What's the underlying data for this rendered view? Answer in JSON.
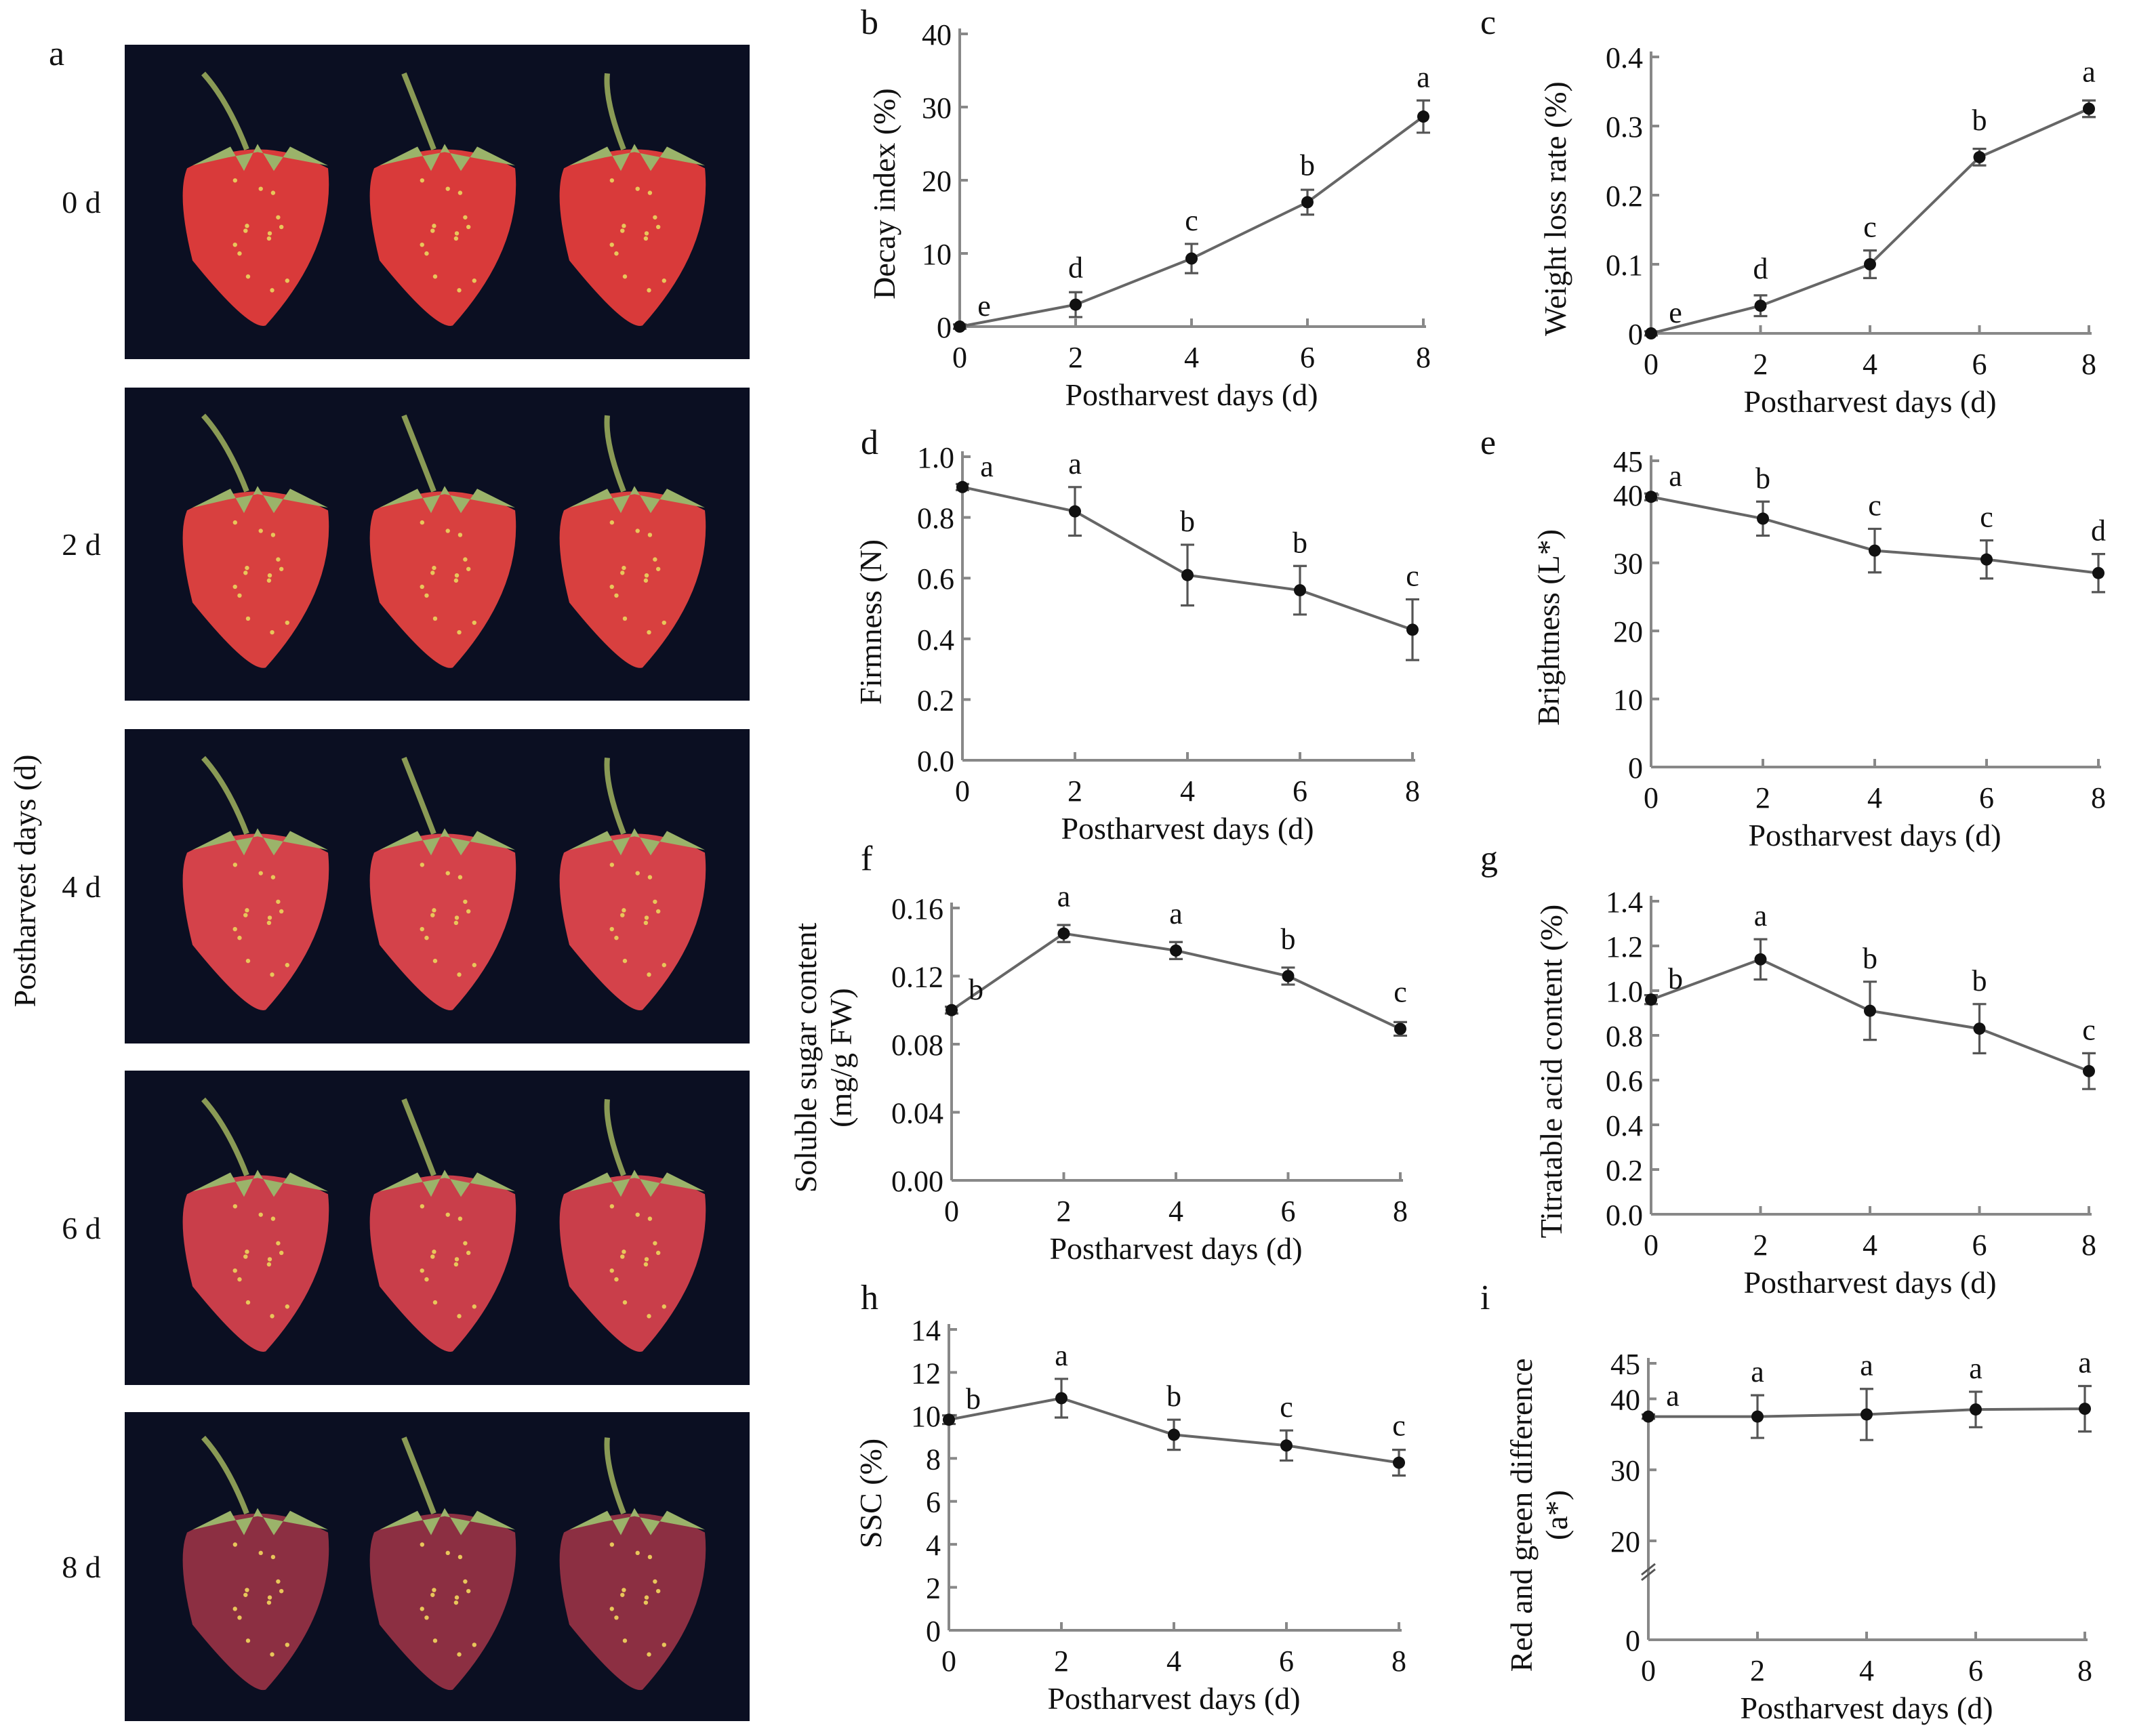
{
  "photo_panel": {
    "label": "a",
    "ylabel": "Postharvest days (d)",
    "rows": [
      {
        "day": "0 d",
        "fruit_color": "#d93a3a"
      },
      {
        "day": "2 d",
        "fruit_color": "#d8403f"
      },
      {
        "day": "4 d",
        "fruit_color": "#d4424a"
      },
      {
        "day": "6 d",
        "fruit_color": "#c93e4a"
      },
      {
        "day": "8 d",
        "fruit_color": "#8c2f42"
      }
    ],
    "background_color": "#0b0f22"
  },
  "chart_data": [
    {
      "panel": "b",
      "type": "line",
      "xlabel": "Postharvest days (d)",
      "ylabel": [
        "Decay index (%)"
      ],
      "x": [
        0,
        2,
        4,
        6,
        8
      ],
      "y": [
        0,
        3,
        9.3,
        17,
        28.7
      ],
      "error": [
        0.3,
        1.7,
        2,
        1.7,
        2.2
      ],
      "letters": [
        "e",
        "d",
        "c",
        "b",
        "a"
      ],
      "ylim": [
        0,
        40
      ],
      "yticks": [
        "0",
        "10",
        "20",
        "30",
        "40"
      ],
      "ytick_values": [
        0,
        10,
        20,
        30,
        40
      ],
      "xticks": [
        "0",
        "2",
        "4",
        "6",
        "8"
      ]
    },
    {
      "panel": "c",
      "type": "line",
      "xlabel": "Postharvest days (d)",
      "ylabel": [
        "Weight loss rate (%)"
      ],
      "x": [
        0,
        2,
        4,
        6,
        8
      ],
      "y": [
        0,
        0.04,
        0.1,
        0.255,
        0.325
      ],
      "error": [
        0.003,
        0.015,
        0.02,
        0.012,
        0.012
      ],
      "letters": [
        "e",
        "d",
        "c",
        "b",
        "a"
      ],
      "ylim": [
        0,
        0.4
      ],
      "yticks": [
        "0",
        "0.1",
        "0.2",
        "0.3",
        "0.4"
      ],
      "ytick_values": [
        0,
        0.1,
        0.2,
        0.3,
        0.4
      ],
      "xticks": [
        "0",
        "2",
        "4",
        "6",
        "8"
      ]
    },
    {
      "panel": "d",
      "type": "line",
      "xlabel": "Postharvest days (d)",
      "ylabel": [
        "Firmness (N)"
      ],
      "x": [
        0,
        2,
        4,
        6,
        8
      ],
      "y": [
        0.9,
        0.82,
        0.61,
        0.56,
        0.43
      ],
      "error": [
        0.01,
        0.08,
        0.1,
        0.08,
        0.1
      ],
      "letters": [
        "a",
        "a",
        "b",
        "b",
        "c"
      ],
      "ylim": [
        0,
        1.0
      ],
      "yticks": [
        "0.0",
        "0.2",
        "0.4",
        "0.6",
        "0.8",
        "1.0"
      ],
      "ytick_values": [
        0,
        0.2,
        0.4,
        0.6,
        0.8,
        1.0
      ],
      "xticks": [
        "0",
        "2",
        "4",
        "6",
        "8"
      ]
    },
    {
      "panel": "e",
      "type": "line",
      "xlabel": "Postharvest days (d)",
      "ylabel": [
        "Brightness (L*)"
      ],
      "x": [
        0,
        2,
        4,
        6,
        8
      ],
      "y": [
        39.7,
        36.5,
        31.8,
        30.5,
        28.5
      ],
      "error": [
        0.5,
        2.5,
        3.2,
        2.8,
        2.8
      ],
      "letters": [
        "a",
        "b",
        "c",
        "c",
        "d"
      ],
      "ylim": [
        0,
        45
      ],
      "yticks": [
        "0",
        "10",
        "20",
        "30",
        "40",
        "45"
      ],
      "ytick_values": [
        0,
        10,
        20,
        30,
        40,
        45
      ],
      "xticks": [
        "0",
        "2",
        "4",
        "6",
        "8"
      ]
    },
    {
      "panel": "f",
      "type": "line",
      "xlabel": "Postharvest days (d)",
      "ylabel": [
        "Soluble sugar content",
        "(mg/g FW)"
      ],
      "x": [
        0,
        2,
        4,
        6,
        8
      ],
      "y": [
        0.1,
        0.145,
        0.135,
        0.12,
        0.089
      ],
      "error": [
        0.002,
        0.005,
        0.005,
        0.005,
        0.004
      ],
      "letters": [
        "b",
        "a",
        "a",
        "b",
        "c"
      ],
      "ylim": [
        0,
        0.16
      ],
      "yticks": [
        "0.00",
        "0.04",
        "0.08",
        "0.12",
        "0.16"
      ],
      "ytick_values": [
        0,
        0.04,
        0.08,
        0.12,
        0.16
      ],
      "xticks": [
        "0",
        "2",
        "4",
        "6",
        "8"
      ]
    },
    {
      "panel": "g",
      "type": "line",
      "xlabel": "Postharvest days (d)",
      "ylabel": [
        "Titratable acid content (%)"
      ],
      "x": [
        0,
        2,
        4,
        6,
        8
      ],
      "y": [
        0.96,
        1.14,
        0.91,
        0.83,
        0.64
      ],
      "error": [
        0.02,
        0.09,
        0.13,
        0.11,
        0.08
      ],
      "letters": [
        "b",
        "a",
        "b",
        "b",
        "c"
      ],
      "ylim": [
        0,
        1.4
      ],
      "yticks": [
        "0.0",
        "0.2",
        "0.4",
        "0.6",
        "0.8",
        "1.0",
        "1.2",
        "1.4"
      ],
      "ytick_values": [
        0,
        0.2,
        0.4,
        0.6,
        0.8,
        1.0,
        1.2,
        1.4
      ],
      "xticks": [
        "0",
        "2",
        "4",
        "6",
        "8"
      ]
    },
    {
      "panel": "h",
      "type": "line",
      "xlabel": "Postharvest days (d)",
      "ylabel": [
        "SSC (%)"
      ],
      "x": [
        0,
        2,
        4,
        6,
        8
      ],
      "y": [
        9.8,
        10.8,
        9.1,
        8.6,
        7.8
      ],
      "error": [
        0.2,
        0.9,
        0.7,
        0.7,
        0.6
      ],
      "letters": [
        "b",
        "a",
        "b",
        "c",
        "c"
      ],
      "ylim": [
        0,
        14
      ],
      "yticks": [
        "0",
        "2",
        "4",
        "6",
        "8",
        "10",
        "12",
        "14"
      ],
      "ytick_values": [
        0,
        2,
        4,
        6,
        8,
        10,
        12,
        14
      ],
      "xticks": [
        "0",
        "2",
        "4",
        "6",
        "8"
      ]
    },
    {
      "panel": "i",
      "type": "line",
      "xlabel": "Postharvest days (d)",
      "ylabel": [
        "Red and green difference",
        "(a*)"
      ],
      "x": [
        0,
        2,
        4,
        6,
        8
      ],
      "y": [
        37.5,
        37.5,
        37.8,
        38.5,
        38.6
      ],
      "error": [
        0.3,
        3,
        3.6,
        2.5,
        3.2
      ],
      "letters": [
        "a",
        "a",
        "a",
        "a",
        "a"
      ],
      "ylim": [
        0,
        45
      ],
      "axis_break": true,
      "yticks": [
        "0",
        "20",
        "30",
        "40",
        "45"
      ],
      "ytick_values": [
        0,
        20,
        30,
        40,
        45
      ],
      "xticks": [
        "0",
        "2",
        "4",
        "6",
        "8"
      ]
    }
  ]
}
